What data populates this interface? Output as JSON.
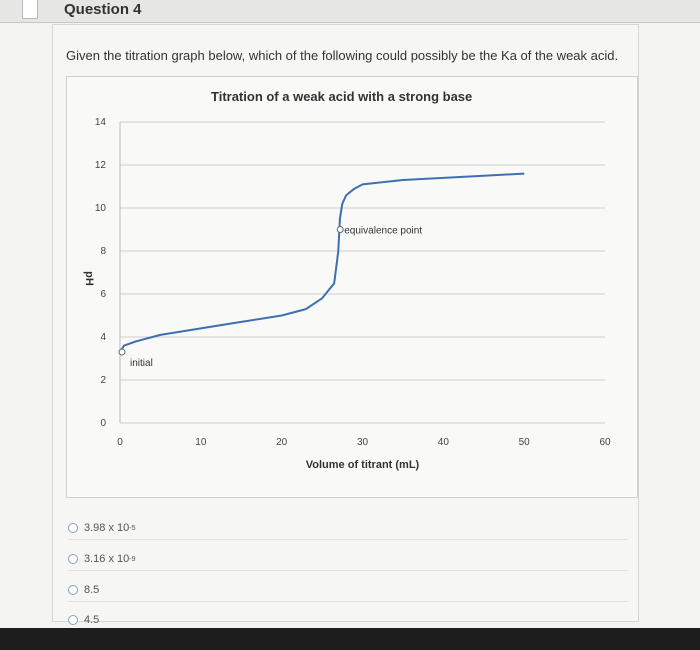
{
  "question": {
    "title": "Question 4",
    "prompt": "Given the titration graph below, which of the following could possibly be the Ka of the weak acid."
  },
  "chart_data": {
    "type": "line",
    "title": "Titration of a weak acid with a strong base",
    "xlabel": "Volume of titrant (mL)",
    "ylabel": "pH",
    "xlim": [
      0,
      60
    ],
    "ylim": [
      0,
      14
    ],
    "x_ticks": [
      "0",
      "10",
      "20",
      "30",
      "40",
      "50",
      "60"
    ],
    "y_ticks": [
      "0",
      "2",
      "4",
      "6",
      "8",
      "10",
      "12",
      "14"
    ],
    "grid": true,
    "series": [
      {
        "x": [
          0,
          0.5,
          2,
          5,
          10,
          15,
          20,
          23,
          25,
          26.5,
          27,
          27.2,
          27.5,
          28,
          29,
          30,
          35,
          40,
          45,
          50
        ],
        "y": [
          3.3,
          3.6,
          3.8,
          4.1,
          4.4,
          4.7,
          5.0,
          5.3,
          5.8,
          6.5,
          8.0,
          9.5,
          10.2,
          10.6,
          10.9,
          11.1,
          11.3,
          11.4,
          11.5,
          11.6
        ]
      }
    ],
    "annotations": [
      {
        "text": "initial",
        "x": 0,
        "y": 3.3
      },
      {
        "text": "equivalence point",
        "x": 27,
        "y": 8.0
      }
    ],
    "line_color": "#3f6fb0"
  },
  "options": [
    {
      "label": "3.98 x 10",
      "exp": "-5"
    },
    {
      "label": "3.16 x 10",
      "exp": "-9"
    },
    {
      "label": "8.5",
      "exp": ""
    },
    {
      "label": "4.5",
      "exp": ""
    }
  ]
}
